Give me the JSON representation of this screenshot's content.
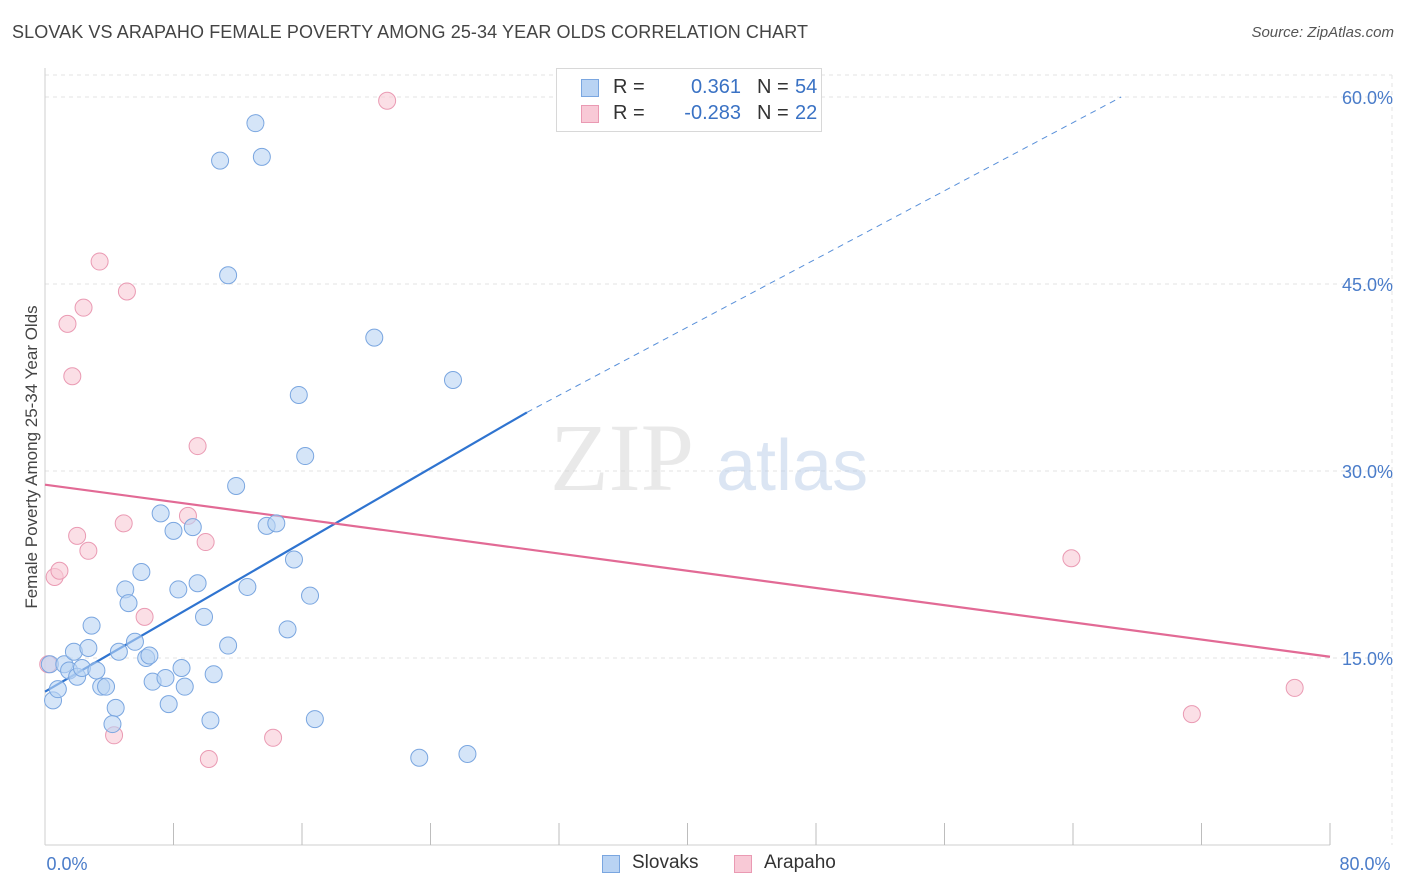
{
  "title": "SLOVAK VS ARAPAHO FEMALE POVERTY AMONG 25-34 YEAR OLDS CORRELATION CHART",
  "source": "Source: ZipAtlas.com",
  "watermark": {
    "zip": "ZIP",
    "atlas": "atlas"
  },
  "legend": {
    "rows": [
      {
        "r_label": "R =",
        "r_value": "0.361",
        "n_label": "N =",
        "n_value": "54"
      },
      {
        "r_label": "R =",
        "r_value": "-0.283",
        "n_label": "N =",
        "n_value": "22"
      }
    ]
  },
  "colors": {
    "slovaks_fill": "#b9d3f3",
    "slovaks_stroke": "#7aa6e0",
    "slovaks_line": "#2f74d0",
    "arapaho_fill": "#f8c9d6",
    "arapaho_stroke": "#ea9ab3",
    "arapaho_line": "#e26a95",
    "grid": "#e3e3e3",
    "tick_text": "#4a7cc9"
  },
  "chart_data": {
    "type": "scatter",
    "title": "SLOVAK VS ARAPAHO FEMALE POVERTY AMONG 25-34 YEAR OLDS CORRELATION CHART",
    "xlabel": "",
    "ylabel": "Female Poverty Among 25-34 Year Olds",
    "xlim": [
      0,
      80
    ],
    "ylim": [
      0,
      61
    ],
    "x_tick_labels": [
      {
        "value": 0,
        "label": "0.0%"
      },
      {
        "value": 80,
        "label": "80.0%"
      }
    ],
    "y_tick_labels": [
      {
        "value": 15,
        "label": "15.0%"
      },
      {
        "value": 30,
        "label": "30.0%"
      },
      {
        "value": 45,
        "label": "45.0%"
      },
      {
        "value": 60,
        "label": "60.0%"
      }
    ],
    "grid": true,
    "legend_position": "bottom-center",
    "series": [
      {
        "name": "Slovaks",
        "r": 0.361,
        "n": 54,
        "trend": {
          "x": [
            0,
            30
          ],
          "y": [
            12.3,
            34.7
          ],
          "dashed_to": [
            67,
            60
          ]
        },
        "points": [
          [
            0.3,
            14.5
          ],
          [
            0.5,
            11.6
          ],
          [
            0.8,
            12.5
          ],
          [
            1.2,
            14.5
          ],
          [
            1.5,
            14.0
          ],
          [
            1.8,
            15.5
          ],
          [
            2.0,
            13.5
          ],
          [
            2.3,
            14.2
          ],
          [
            2.7,
            15.8
          ],
          [
            2.9,
            17.6
          ],
          [
            3.2,
            14.0
          ],
          [
            3.5,
            12.7
          ],
          [
            3.8,
            12.7
          ],
          [
            4.4,
            11.0
          ],
          [
            4.2,
            9.7
          ],
          [
            4.6,
            15.5
          ],
          [
            5.0,
            20.5
          ],
          [
            5.2,
            19.4
          ],
          [
            5.6,
            16.3
          ],
          [
            6.0,
            21.9
          ],
          [
            6.3,
            15.0
          ],
          [
            6.5,
            15.2
          ],
          [
            6.7,
            13.1
          ],
          [
            7.2,
            26.6
          ],
          [
            7.5,
            13.4
          ],
          [
            7.7,
            11.3
          ],
          [
            8.0,
            25.2
          ],
          [
            8.3,
            20.5
          ],
          [
            8.5,
            14.2
          ],
          [
            8.7,
            12.7
          ],
          [
            9.2,
            25.5
          ],
          [
            9.5,
            21.0
          ],
          [
            9.9,
            18.3
          ],
          [
            10.3,
            10.0
          ],
          [
            10.5,
            13.7
          ],
          [
            10.9,
            54.9
          ],
          [
            11.4,
            45.7
          ],
          [
            11.4,
            16.0
          ],
          [
            11.9,
            28.8
          ],
          [
            12.6,
            20.7
          ],
          [
            13.1,
            57.9
          ],
          [
            13.5,
            55.2
          ],
          [
            13.8,
            25.6
          ],
          [
            14.4,
            25.8
          ],
          [
            15.1,
            17.3
          ],
          [
            15.5,
            22.9
          ],
          [
            15.8,
            36.1
          ],
          [
            16.2,
            31.2
          ],
          [
            16.5,
            20.0
          ],
          [
            16.8,
            10.1
          ],
          [
            20.5,
            40.7
          ],
          [
            23.3,
            7.0
          ],
          [
            25.4,
            37.3
          ],
          [
            26.3,
            7.3
          ]
        ]
      },
      {
        "name": "Arapaho",
        "r": -0.283,
        "n": 22,
        "trend": {
          "x": [
            0,
            80
          ],
          "y": [
            28.9,
            15.1
          ]
        },
        "points": [
          [
            0.2,
            14.5
          ],
          [
            0.6,
            21.5
          ],
          [
            0.9,
            22.0
          ],
          [
            1.4,
            41.8
          ],
          [
            1.7,
            37.6
          ],
          [
            2.0,
            24.8
          ],
          [
            2.4,
            43.1
          ],
          [
            2.7,
            23.6
          ],
          [
            3.4,
            46.8
          ],
          [
            4.3,
            8.8
          ],
          [
            4.9,
            25.8
          ],
          [
            5.1,
            44.4
          ],
          [
            6.2,
            18.3
          ],
          [
            8.9,
            26.4
          ],
          [
            9.5,
            32.0
          ],
          [
            10.0,
            24.3
          ],
          [
            10.2,
            6.9
          ],
          [
            14.2,
            8.6
          ],
          [
            21.3,
            59.7
          ],
          [
            63.9,
            23.0
          ],
          [
            71.4,
            10.5
          ],
          [
            77.8,
            12.6
          ]
        ]
      }
    ]
  }
}
